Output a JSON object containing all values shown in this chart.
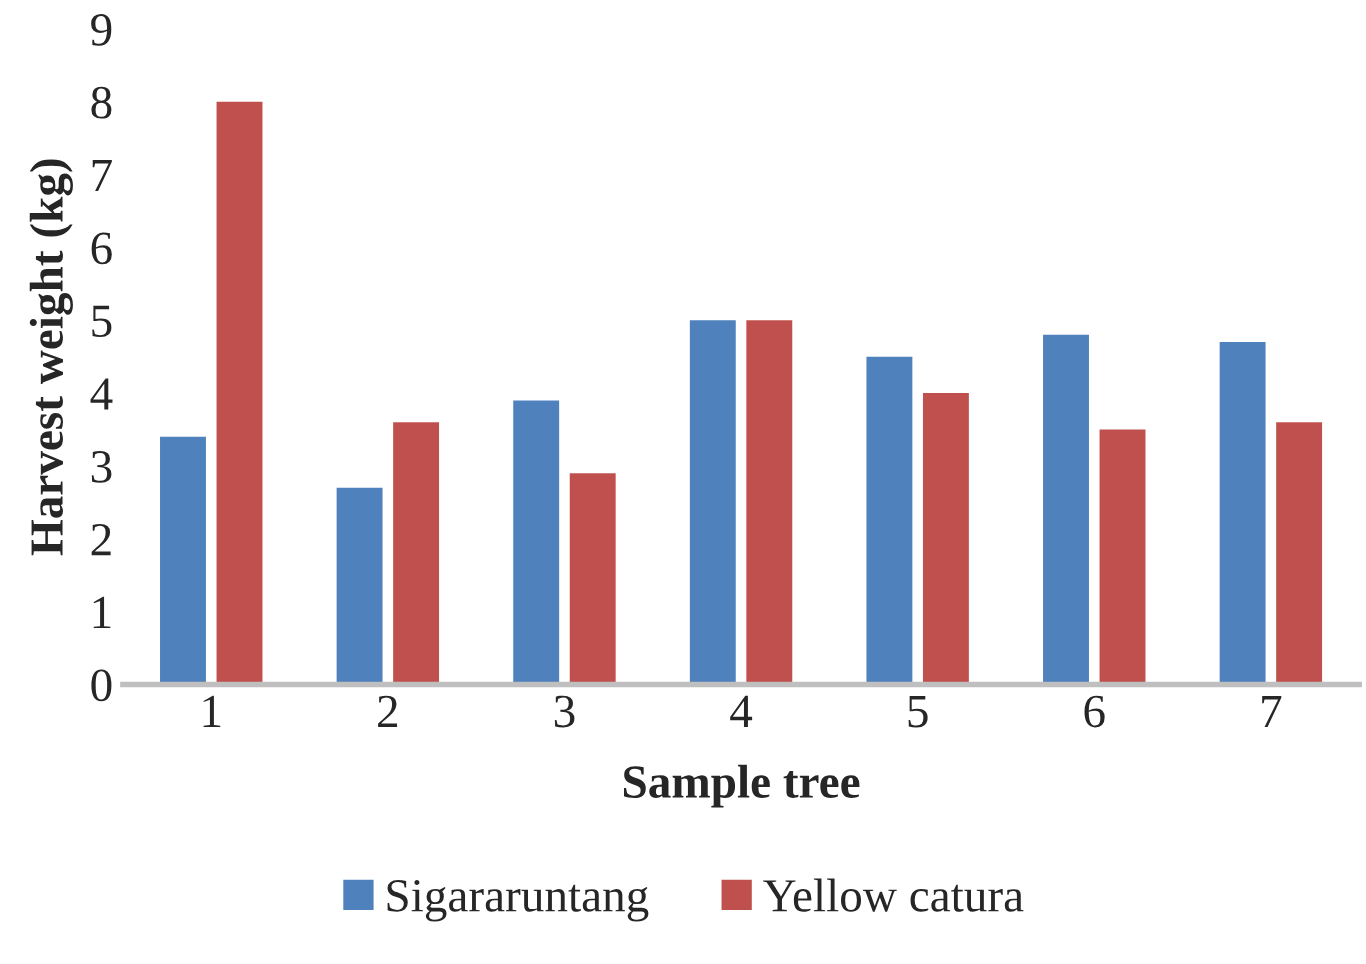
{
  "chart_data": {
    "type": "bar",
    "xlabel": "Sample tree",
    "ylabel": "Harvest weight (kg)",
    "categories": [
      "1",
      "2",
      "3",
      "4",
      "5",
      "6",
      "7"
    ],
    "series": [
      {
        "name": "Sigararuntang",
        "color": "#4f81bd",
        "values": [
          3.4,
          2.7,
          3.9,
          5.0,
          4.5,
          4.8,
          4.7
        ]
      },
      {
        "name": "Yellow catura",
        "color": "#c0504d",
        "values": [
          8.0,
          3.6,
          2.9,
          5.0,
          4.0,
          3.5,
          3.6
        ]
      }
    ],
    "ylim": [
      0,
      9
    ],
    "yticks": [
      0,
      1,
      2,
      3,
      4,
      5,
      6,
      7,
      8,
      9
    ],
    "grid": false,
    "legend": "bottom"
  }
}
